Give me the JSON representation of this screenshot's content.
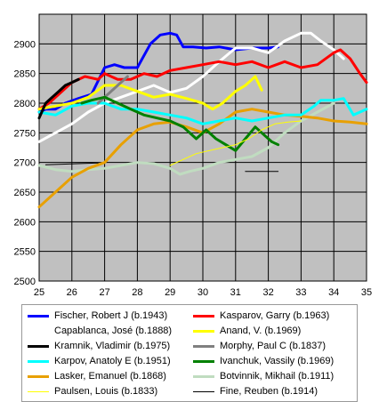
{
  "chart_data": {
    "type": "line",
    "title": "",
    "xlabel": "",
    "ylabel": "",
    "xlim": [
      25,
      35
    ],
    "ylim": [
      2500,
      2950
    ],
    "x_ticks": [
      "25",
      "26",
      "27",
      "28",
      "29",
      "30",
      "31",
      "32",
      "33",
      "34",
      "35"
    ],
    "y_ticks": [
      "2500",
      "2550",
      "2600",
      "2650",
      "2700",
      "2750",
      "2800",
      "2850",
      "2900"
    ],
    "grid": true,
    "legend_placement": "bottom",
    "series": [
      {
        "name": "Fischer, Robert J (b.1943)",
        "color": "#0000ff",
        "width": 3,
        "x": [
          25.0,
          25.2,
          25.5,
          25.8,
          26.2,
          26.6,
          27.0,
          27.3,
          27.6,
          28.0,
          28.4,
          28.7,
          29.0,
          29.2,
          29.4,
          29.7,
          30.1,
          30.5,
          31.0,
          31.5,
          32.0,
          32.3
        ],
        "y": [
          2785,
          2790,
          2790,
          2800,
          2808,
          2815,
          2860,
          2865,
          2860,
          2860,
          2900,
          2915,
          2918,
          2915,
          2895,
          2895,
          2893,
          2895,
          2890,
          2893,
          2893,
          2895
        ]
      },
      {
        "name": "Kasparov, Garry (b.1963)",
        "color": "#ff0000",
        "width": 3,
        "x": [
          25.0,
          25.3,
          25.6,
          26.0,
          26.4,
          26.8,
          27.0,
          27.4,
          27.8,
          28.2,
          28.6,
          29.0,
          29.5,
          30.0,
          30.5,
          31.0,
          31.5,
          32.0,
          32.5,
          33.0,
          33.5,
          34.0,
          34.2,
          34.5,
          34.8,
          35.0
        ],
        "y": [
          2790,
          2800,
          2815,
          2835,
          2845,
          2840,
          2850,
          2840,
          2840,
          2850,
          2845,
          2855,
          2860,
          2865,
          2870,
          2865,
          2870,
          2860,
          2870,
          2860,
          2865,
          2885,
          2890,
          2875,
          2850,
          2835
        ]
      },
      {
        "name": "Capablanca, José (b.1888)",
        "color": "#ffffff",
        "width": 3,
        "x": [
          25.0,
          25.5,
          26.0,
          26.5,
          27.0,
          27.5,
          28.0,
          28.5,
          29.0,
          29.5,
          30.0,
          30.5,
          31.0,
          31.5,
          32.0,
          32.5,
          33.0,
          33.3,
          33.6,
          34.0,
          34.3
        ],
        "y": [
          2735,
          2750,
          2765,
          2785,
          2800,
          2810,
          2820,
          2830,
          2818,
          2825,
          2845,
          2870,
          2893,
          2893,
          2885,
          2905,
          2918,
          2918,
          2905,
          2890,
          2875
        ]
      },
      {
        "name": "Anand, V. (b.1969)",
        "color": "#ffff00",
        "width": 3,
        "x": [
          25.0,
          25.5,
          26.0,
          26.5,
          27.0,
          27.5,
          28.0,
          28.5,
          29.0,
          29.5,
          30.0,
          30.3,
          30.6,
          31.0,
          31.3,
          31.6,
          31.8
        ],
        "y": [
          2790,
          2795,
          2800,
          2810,
          2830,
          2830,
          2820,
          2810,
          2815,
          2808,
          2800,
          2790,
          2800,
          2820,
          2830,
          2845,
          2822
        ]
      },
      {
        "name": "Kramnik, Vladimir (b.1975)",
        "color": "#000000",
        "width": 3,
        "x": [
          25.0,
          25.2,
          25.4,
          25.6,
          25.8,
          26.0,
          26.2
        ],
        "y": [
          2775,
          2800,
          2810,
          2820,
          2830,
          2835,
          2840
        ]
      },
      {
        "name": "Morphy, Paul C (b.1837)",
        "color": "#808080",
        "width": 3,
        "x": [
          26.8,
          27.1,
          27.4,
          27.7
        ],
        "y": [
          2800,
          2815,
          2830,
          2845
        ]
      },
      {
        "name": "Karpov, Anatoly E (b.1951)",
        "color": "#00ffff",
        "width": 3,
        "x": [
          25.0,
          25.5,
          26.0,
          26.5,
          27.0,
          27.5,
          28.0,
          28.5,
          29.0,
          29.5,
          30.0,
          30.5,
          31.0,
          31.5,
          32.0,
          32.5,
          33.0,
          33.4,
          33.6,
          34.0,
          34.3,
          34.6,
          35.0
        ],
        "y": [
          2785,
          2780,
          2795,
          2800,
          2800,
          2790,
          2790,
          2785,
          2780,
          2775,
          2765,
          2770,
          2775,
          2770,
          2775,
          2780,
          2780,
          2795,
          2805,
          2805,
          2808,
          2780,
          2790
        ]
      },
      {
        "name": "Ivanchuk, Vassily (b.1969)",
        "color": "#008000",
        "width": 3,
        "x": [
          26.3,
          26.6,
          27.0,
          27.4,
          27.8,
          28.2,
          28.6,
          29.0,
          29.4,
          29.8,
          30.1,
          30.4,
          30.7,
          31.0,
          31.3,
          31.6,
          31.9,
          32.1,
          32.3
        ],
        "y": [
          2800,
          2805,
          2810,
          2800,
          2790,
          2780,
          2775,
          2770,
          2760,
          2740,
          2755,
          2740,
          2730,
          2720,
          2740,
          2760,
          2745,
          2735,
          2730
        ]
      },
      {
        "name": "Lasker, Emanuel (b.1868)",
        "color": "#e8a000",
        "width": 3,
        "x": [
          25.0,
          25.5,
          26.0,
          26.5,
          27.0,
          27.5,
          28.0,
          28.5,
          29.0,
          29.5,
          30.0,
          30.5,
          31.0,
          31.5,
          32.0,
          32.5,
          33.0,
          33.5,
          34.0,
          34.5,
          35.0
        ],
        "y": [
          2625,
          2650,
          2675,
          2690,
          2700,
          2730,
          2755,
          2765,
          2768,
          2760,
          2750,
          2765,
          2785,
          2790,
          2785,
          2780,
          2778,
          2775,
          2770,
          2768,
          2765
        ]
      },
      {
        "name": "Botvinnik, Mikhail (b.1911)",
        "color": "#c0dcc0",
        "width": 3,
        "x": [
          25.0,
          25.5,
          26.0,
          26.5,
          27.0,
          27.5,
          28.0,
          28.5,
          29.0,
          29.3,
          29.6,
          30.0,
          30.5,
          31.0,
          31.5,
          32.0,
          32.5,
          33.0,
          33.5,
          34.0
        ],
        "y": [
          2695,
          2688,
          2685,
          2688,
          2690,
          2695,
          2700,
          2698,
          2690,
          2680,
          2685,
          2690,
          2700,
          2705,
          2710,
          2725,
          2750,
          2770,
          2785,
          2800
        ]
      },
      {
        "name": "Paulsen, Louis (b.1833)",
        "color": "#ffff00",
        "width": 1,
        "x": [
          29.0,
          29.4,
          29.8,
          30.2,
          30.6,
          31.0,
          31.4,
          31.8,
          32.2,
          32.6,
          33.0
        ],
        "y": [
          2695,
          2705,
          2715,
          2720,
          2725,
          2730,
          2740,
          2755,
          2765,
          2768,
          2770
        ]
      },
      {
        "name": "Fine, Reuben (b.1914)",
        "color": "#000000",
        "width": 1,
        "segments": [
          {
            "x": [
              25.2,
              26.8
            ],
            "y": [
              2696,
              2699
            ]
          },
          {
            "x": [
              31.3,
              32.3
            ],
            "y": [
              2685,
              2685
            ]
          }
        ]
      }
    ]
  }
}
